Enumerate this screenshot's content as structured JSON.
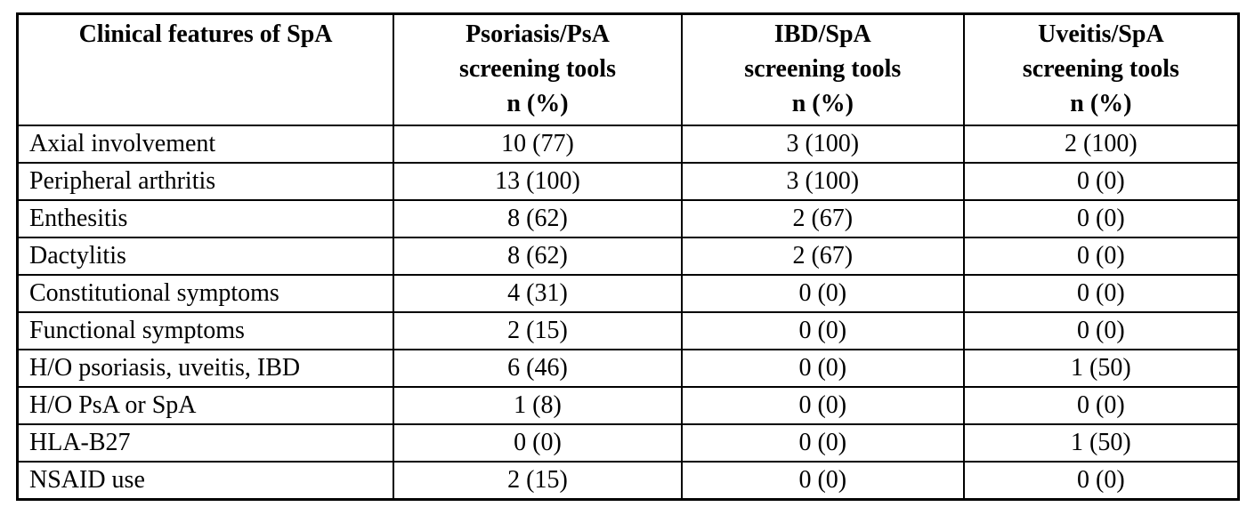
{
  "table": {
    "header": {
      "feature_label": "Clinical features of SpA",
      "groups": [
        {
          "title": "Psoriasis/PsA",
          "subtitle": "screening tools",
          "unit": "n (%)"
        },
        {
          "title": "IBD/SpA",
          "subtitle": "screening tools",
          "unit": "n (%)"
        },
        {
          "title": "Uveitis/SpA",
          "subtitle": "screening tools",
          "unit": "n (%)"
        }
      ]
    },
    "rows": [
      {
        "feature": "Axial involvement",
        "values": [
          "10 (77)",
          "3 (100)",
          "2 (100)"
        ]
      },
      {
        "feature": "Peripheral arthritis",
        "values": [
          "13 (100)",
          "3 (100)",
          "0 (0)"
        ]
      },
      {
        "feature": "Enthesitis",
        "values": [
          "8 (62)",
          "2 (67)",
          "0 (0)"
        ]
      },
      {
        "feature": "Dactylitis",
        "values": [
          "8 (62)",
          "2 (67)",
          "0 (0)"
        ]
      },
      {
        "feature": "Constitutional symptoms",
        "values": [
          "4 (31)",
          "0 (0)",
          "0 (0)"
        ]
      },
      {
        "feature": "Functional symptoms",
        "values": [
          "2 (15)",
          "0 (0)",
          "0 (0)"
        ]
      },
      {
        "feature": "H/O psoriasis, uveitis, IBD",
        "values": [
          "6 (46)",
          "0 (0)",
          "1 (50)"
        ]
      },
      {
        "feature": "H/O PsA or SpA",
        "values": [
          "1 (8)",
          "0 (0)",
          "0 (0)"
        ]
      },
      {
        "feature": "HLA-B27",
        "values": [
          "0 (0)",
          "0 (0)",
          "1 (50)"
        ]
      },
      {
        "feature": "NSAID use",
        "values": [
          "2 (15)",
          "0 (0)",
          "0 (0)"
        ]
      }
    ],
    "colors": {
      "border": "#000000",
      "text": "#000000",
      "background": "#ffffff"
    }
  }
}
